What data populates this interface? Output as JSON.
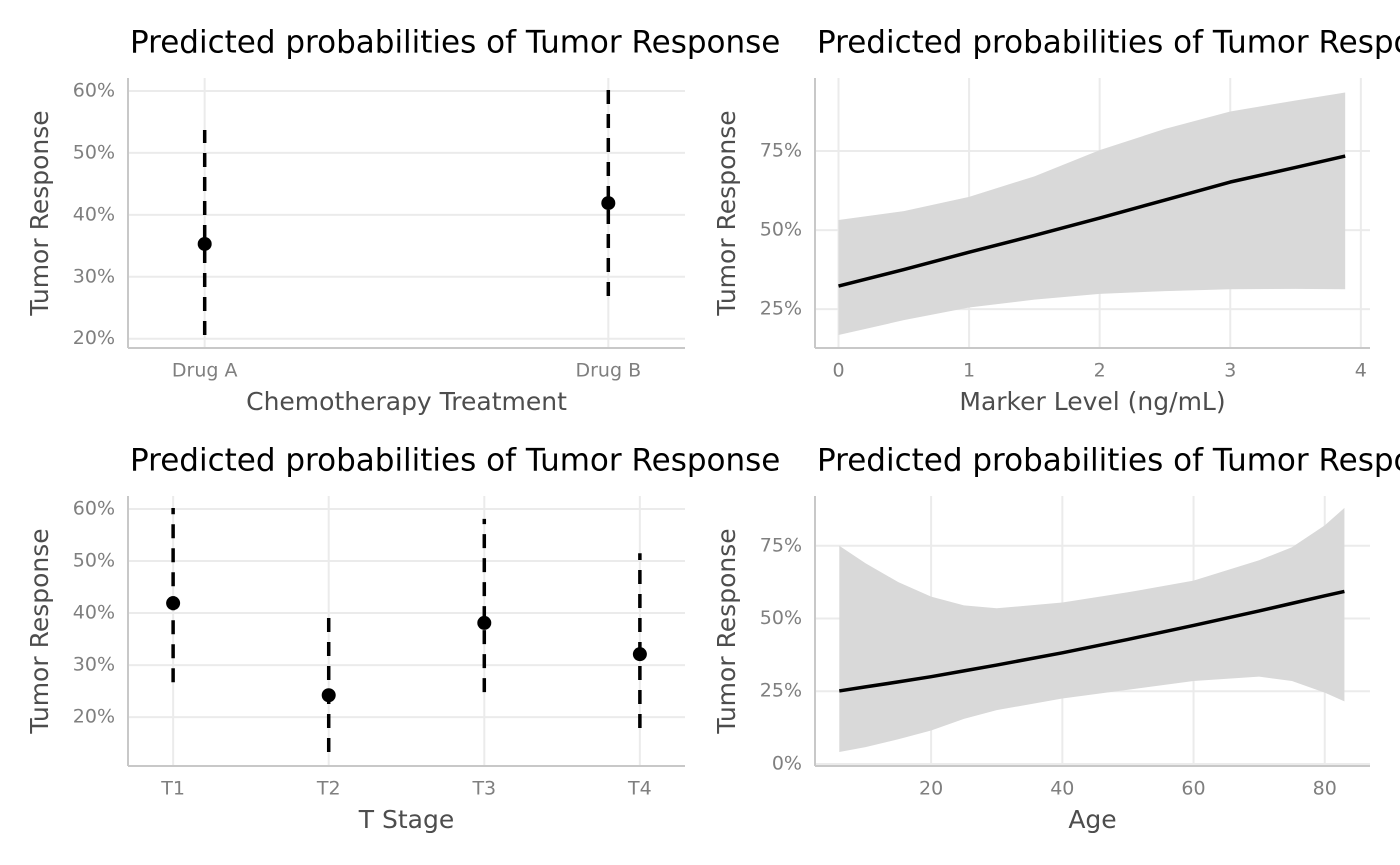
{
  "chart_data": [
    {
      "type": "pointrange",
      "title": "Predicted probabilities of Tumor Response",
      "x_label": "Chemotherapy Treatment",
      "y_label": "Tumor Response",
      "categories": [
        "Drug A",
        "Drug B"
      ],
      "values": [
        35.3,
        41.9
      ],
      "lower": [
        20.6,
        26.9
      ],
      "upper": [
        53.7,
        60.2
      ],
      "ylim": [
        18.5,
        62.1
      ],
      "yticks": [
        {
          "value": 20,
          "label": "20%"
        },
        {
          "value": 30,
          "label": "30%"
        },
        {
          "value": 40,
          "label": "40%"
        },
        {
          "value": 50,
          "label": "50%"
        },
        {
          "value": 60,
          "label": "60%"
        }
      ],
      "grid": true,
      "color": "#000000"
    },
    {
      "type": "line",
      "title": "Predicted probabilities of Tumor Response",
      "x_label": "Marker Level (ng/mL)",
      "y_label": "Tumor Response",
      "x": [
        0,
        0.5,
        1,
        1.5,
        2,
        2.5,
        3,
        3.5,
        3.88
      ],
      "values": [
        32.3,
        37.5,
        43.0,
        48.3,
        53.8,
        59.5,
        65.2,
        69.8,
        73.4
      ],
      "lower": [
        16.8,
        21.5,
        25.5,
        28,
        29.8,
        30.7,
        31.3,
        31.4,
        31.3
      ],
      "upper": [
        53.2,
        56,
        60.5,
        67,
        75.3,
        82,
        87.5,
        91,
        93.5
      ],
      "xlim": [
        -0.18,
        4.07
      ],
      "xticks": [
        0,
        1,
        2,
        3,
        4
      ],
      "ylim": [
        12.7,
        98.1
      ],
      "yticks": [
        {
          "value": 25,
          "label": "25%"
        },
        {
          "value": 50,
          "label": "50%"
        },
        {
          "value": 75,
          "label": "75%"
        }
      ],
      "grid": true,
      "color": "#000000",
      "band_color": "#d9d9d9"
    },
    {
      "type": "pointrange",
      "title": "Predicted probabilities of Tumor Response",
      "x_label": "T Stage",
      "y_label": "Tumor Response",
      "categories": [
        "T1",
        "T2",
        "T3",
        "T4"
      ],
      "values": [
        41.9,
        24.2,
        38.1,
        32.1
      ],
      "lower": [
        26.7,
        13.3,
        24.8,
        17.9
      ],
      "upper": [
        60.2,
        40.2,
        58.1,
        51.5
      ],
      "ylim": [
        10.6,
        62.5
      ],
      "yticks": [
        {
          "value": 20,
          "label": "20%"
        },
        {
          "value": 30,
          "label": "30%"
        },
        {
          "value": 40,
          "label": "40%"
        },
        {
          "value": 50,
          "label": "50%"
        },
        {
          "value": 60,
          "label": "60%"
        }
      ],
      "grid": true,
      "color": "#000000"
    },
    {
      "type": "line",
      "title": "Predicted probabilities of Tumor Response",
      "x_label": "Age",
      "y_label": "Tumor Response",
      "x": [
        6,
        10,
        15,
        20,
        25,
        30,
        40,
        50,
        60,
        70,
        75,
        80,
        83
      ],
      "values": [
        25.1,
        26.5,
        28.2,
        30.0,
        32.0,
        34.0,
        38.2,
        42.8,
        47.6,
        52.6,
        55.2,
        57.8,
        59.3
      ],
      "lower": [
        4.1,
        5.8,
        8.5,
        11.5,
        15.5,
        18.5,
        22.5,
        25.5,
        28.5,
        30,
        28.5,
        24.5,
        21.5
      ],
      "upper": [
        75,
        69,
        62.5,
        57.5,
        54.5,
        53.5,
        55.5,
        59,
        63,
        70,
        74.5,
        82,
        88
      ],
      "xlim": [
        2.3,
        86.9
      ],
      "xticks": [
        20,
        40,
        60,
        80
      ],
      "ylim": [
        -0.7,
        92.1
      ],
      "yticks": [
        {
          "value": 0,
          "label": "0%"
        },
        {
          "value": 25,
          "label": "25%"
        },
        {
          "value": 50,
          "label": "50%"
        },
        {
          "value": 75,
          "label": "75%"
        }
      ],
      "grid": true,
      "color": "#000000",
      "band_color": "#d9d9d9"
    }
  ]
}
